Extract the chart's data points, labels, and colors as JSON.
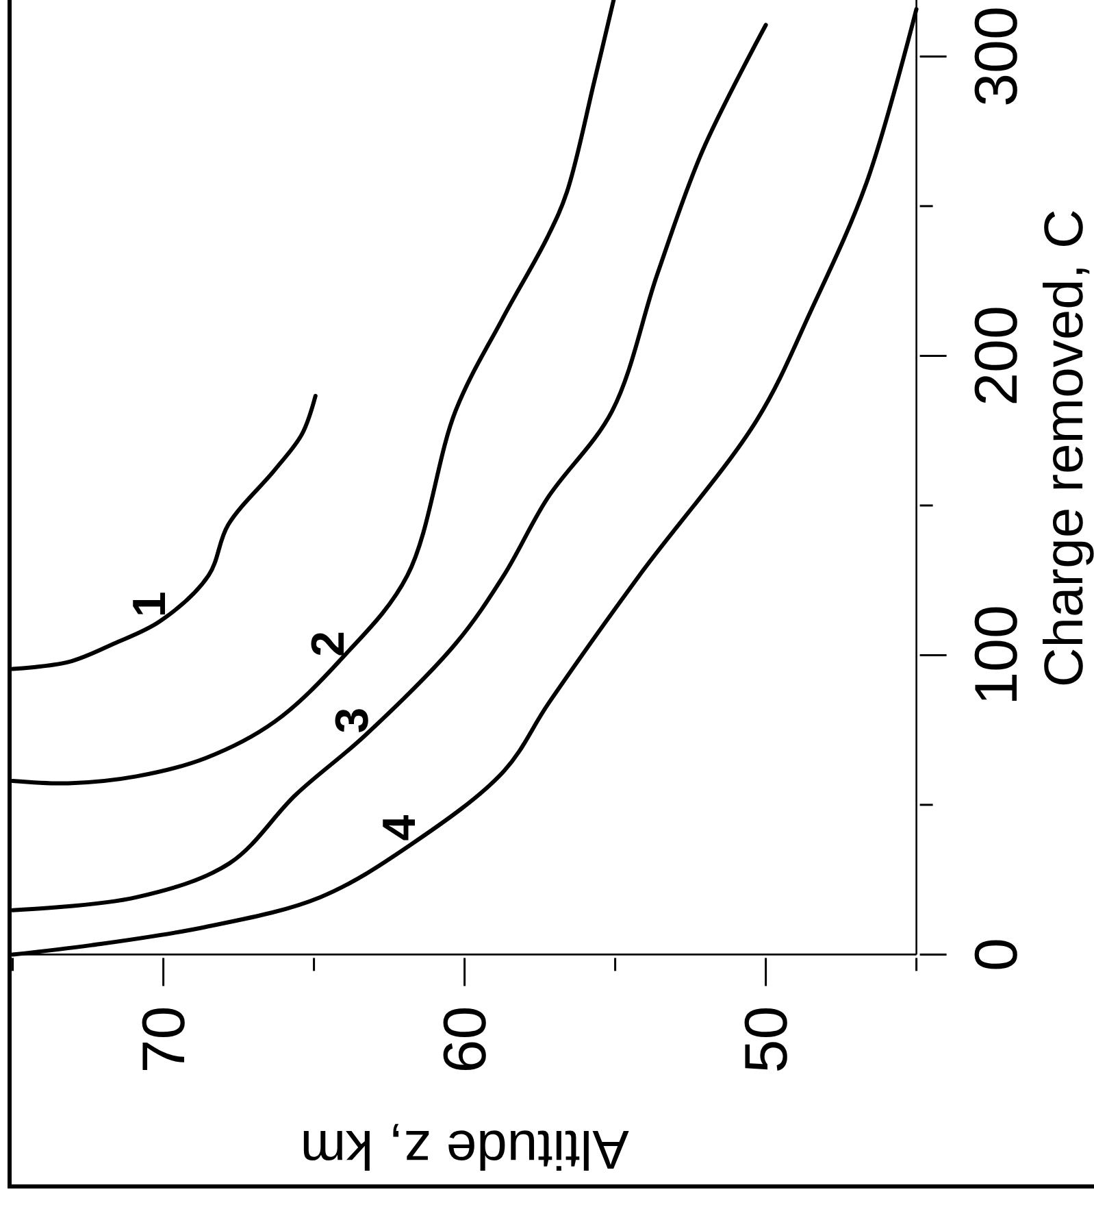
{
  "chart_data": {
    "type": "line",
    "xlabel": "Altitude z, km",
    "ylabel": "Charge removed, C",
    "xlim": [
      75,
      45
    ],
    "ylim": [
      0,
      320
    ],
    "xticks": [
      {
        "value": 75,
        "label": null
      },
      70,
      {
        "value": 65,
        "label": null
      },
      60,
      {
        "value": 55,
        "label": null
      },
      50,
      {
        "value": 45,
        "label": null
      }
    ],
    "yticks": [
      0,
      {
        "value": 50,
        "label": null
      },
      100,
      {
        "value": 150,
        "label": null
      },
      200,
      {
        "value": 250,
        "label": null
      },
      300
    ],
    "grid": false,
    "series": [
      {
        "name": "1",
        "color": "#000000",
        "x": [
          75,
          73.15,
          71.65,
          70.1,
          68.5,
          67.85,
          66.3,
          65.4,
          64.95
        ],
        "values": [
          95.4,
          97.7,
          103.8,
          111.4,
          126.6,
          143.5,
          161.9,
          173.8,
          186.6
        ]
      },
      {
        "name": "2",
        "color": "#000000",
        "x": [
          75,
          73.15,
          70.9,
          68.6,
          66.3,
          64.05,
          61.9,
          60.3,
          58.75,
          57.25,
          56.6,
          55.7,
          55.05
        ],
        "values": [
          58,
          57.2,
          59.5,
          65.6,
          77.8,
          99.2,
          126.6,
          181.6,
          212.2,
          239.6,
          254.8,
          291.4,
          318.9
        ]
      },
      {
        "name": "3",
        "color": "#000000",
        "x": [
          75,
          70.9,
          67.8,
          65.6,
          63.3,
          60.3,
          58.7,
          57.25,
          55.1,
          53.6,
          52.1,
          50
        ],
        "values": [
          14.8,
          19.1,
          30.5,
          53.4,
          73.2,
          103.8,
          126.6,
          152.4,
          181.6,
          227.3,
          268.5,
          310.5
        ]
      },
      {
        "name": "4",
        "color": "#000000",
        "x": [
          75,
          72.4,
          68.6,
          64.8,
          61.8,
          58.7,
          57.2,
          54.2,
          50.3,
          48.5,
          46.65,
          45
        ],
        "values": [
          0,
          3.1,
          9.2,
          19.1,
          36.6,
          61.2,
          84.1,
          126.6,
          178.5,
          215.1,
          258,
          315.8
        ]
      }
    ]
  }
}
